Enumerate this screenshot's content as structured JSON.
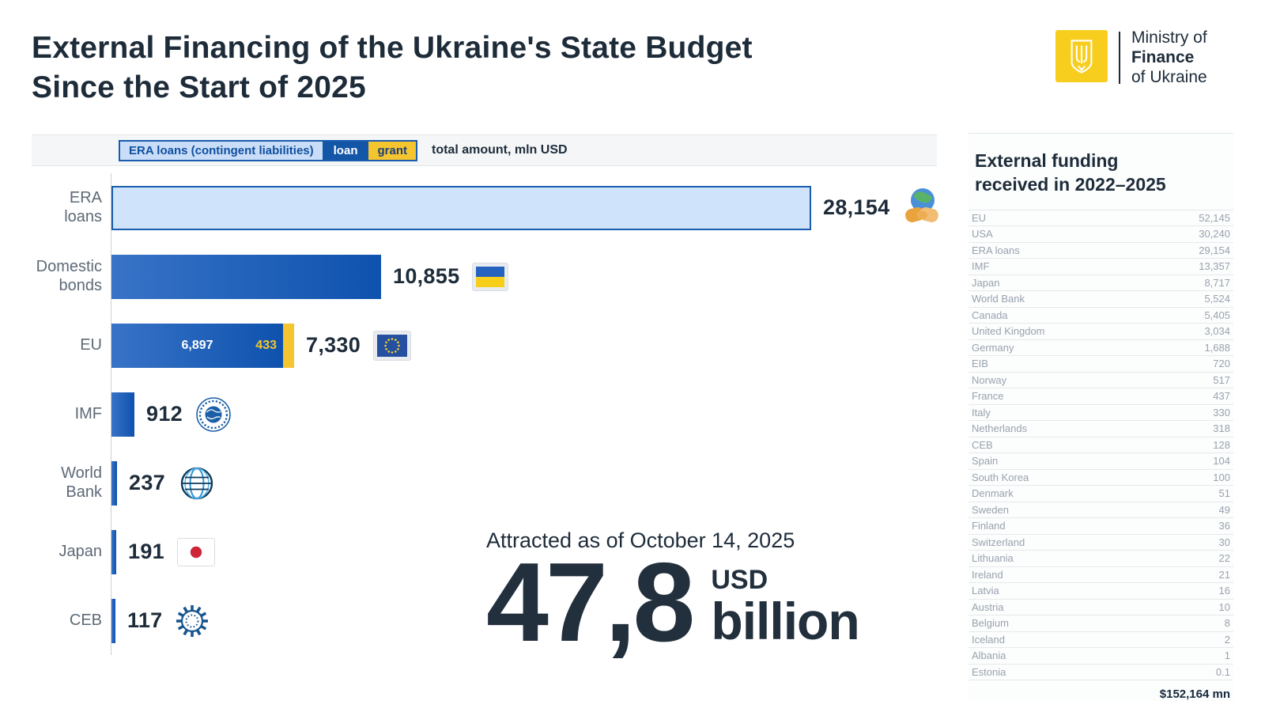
{
  "header": {
    "title": "External Financing of the Ukraine's State Budget\nSince the Start of 2025"
  },
  "logo": {
    "line1": "Ministry of",
    "line2": "Finance",
    "line3": "of Ukraine",
    "emblem": "ukraine-trident-icon",
    "brand_yellow": "#f8ce1e"
  },
  "legend": {
    "era_label": "ERA loans (contingent liabilities)",
    "loan_label": "loan",
    "grant_label": "grant",
    "note": "total amount, mln USD"
  },
  "chart_data": {
    "type": "bar",
    "orientation": "horizontal",
    "unit": "mln USD",
    "colors": {
      "loan_dark": "#0e52ae",
      "loan_light": "#3873c7",
      "grant": "#f4c52e",
      "era_fill": "#cfe3fb",
      "era_border": "#1a5cad"
    },
    "bars": [
      {
        "label": "ERA\nloans",
        "value": 28154,
        "display": "28,154",
        "kind": "era",
        "icon": "globe-handshake-icon"
      },
      {
        "label": "Domestic\nbonds",
        "value": 10855,
        "display": "10,855",
        "kind": "loan",
        "icon": "ukraine-flag-icon"
      },
      {
        "label": "EU",
        "value": 7330,
        "display": "7,330",
        "kind": "split",
        "loan_value": 6897,
        "loan_display": "6,897",
        "grant_value": 433,
        "grant_display": "433",
        "icon": "eu-flag-icon"
      },
      {
        "label": "IMF",
        "value": 912,
        "display": "912",
        "kind": "loan",
        "icon": "imf-logo-icon"
      },
      {
        "label": "World\nBank",
        "value": 237,
        "display": "237",
        "kind": "loan",
        "icon": "world-bank-logo-icon"
      },
      {
        "label": "Japan",
        "value": 191,
        "display": "191",
        "kind": "loan",
        "icon": "japan-flag-icon"
      },
      {
        "label": "CEB",
        "value": 117,
        "display": "117",
        "kind": "loan",
        "icon": "ceb-logo-icon"
      }
    ]
  },
  "highlight": {
    "caption": "Attracted as of October 14, 2025",
    "amount": "47,8",
    "currency": "USD",
    "unit": "billion"
  },
  "sidebar": {
    "title": "External funding\nreceived in 2022–2025",
    "rows": [
      {
        "name": "EU",
        "value": "52,145"
      },
      {
        "name": "USA",
        "value": "30,240"
      },
      {
        "name": "ERA loans",
        "value": "29,154"
      },
      {
        "name": "IMF",
        "value": "13,357"
      },
      {
        "name": "Japan",
        "value": "8,717"
      },
      {
        "name": "World Bank",
        "value": "5,524"
      },
      {
        "name": "Canada",
        "value": "5,405"
      },
      {
        "name": "United Kingdom",
        "value": "3,034"
      },
      {
        "name": "Germany",
        "value": "1,688"
      },
      {
        "name": "EIB",
        "value": "720"
      },
      {
        "name": "Norway",
        "value": "517"
      },
      {
        "name": "France",
        "value": "437"
      },
      {
        "name": "Italy",
        "value": "330"
      },
      {
        "name": "Netherlands",
        "value": "318"
      },
      {
        "name": "CEB",
        "value": "128"
      },
      {
        "name": "Spain",
        "value": "104"
      },
      {
        "name": "South Korea",
        "value": "100"
      },
      {
        "name": "Denmark",
        "value": "51"
      },
      {
        "name": "Sweden",
        "value": "49"
      },
      {
        "name": "Finland",
        "value": "36"
      },
      {
        "name": "Switzerland",
        "value": "30"
      },
      {
        "name": "Lithuania",
        "value": "22"
      },
      {
        "name": "Ireland",
        "value": "21"
      },
      {
        "name": "Latvia",
        "value": "16"
      },
      {
        "name": "Austria",
        "value": "10"
      },
      {
        "name": "Belgium",
        "value": "8"
      },
      {
        "name": "Iceland",
        "value": "2"
      },
      {
        "name": "Albania",
        "value": "1"
      },
      {
        "name": "Estonia",
        "value": "0.1"
      }
    ],
    "total": "$152,164 mn"
  }
}
